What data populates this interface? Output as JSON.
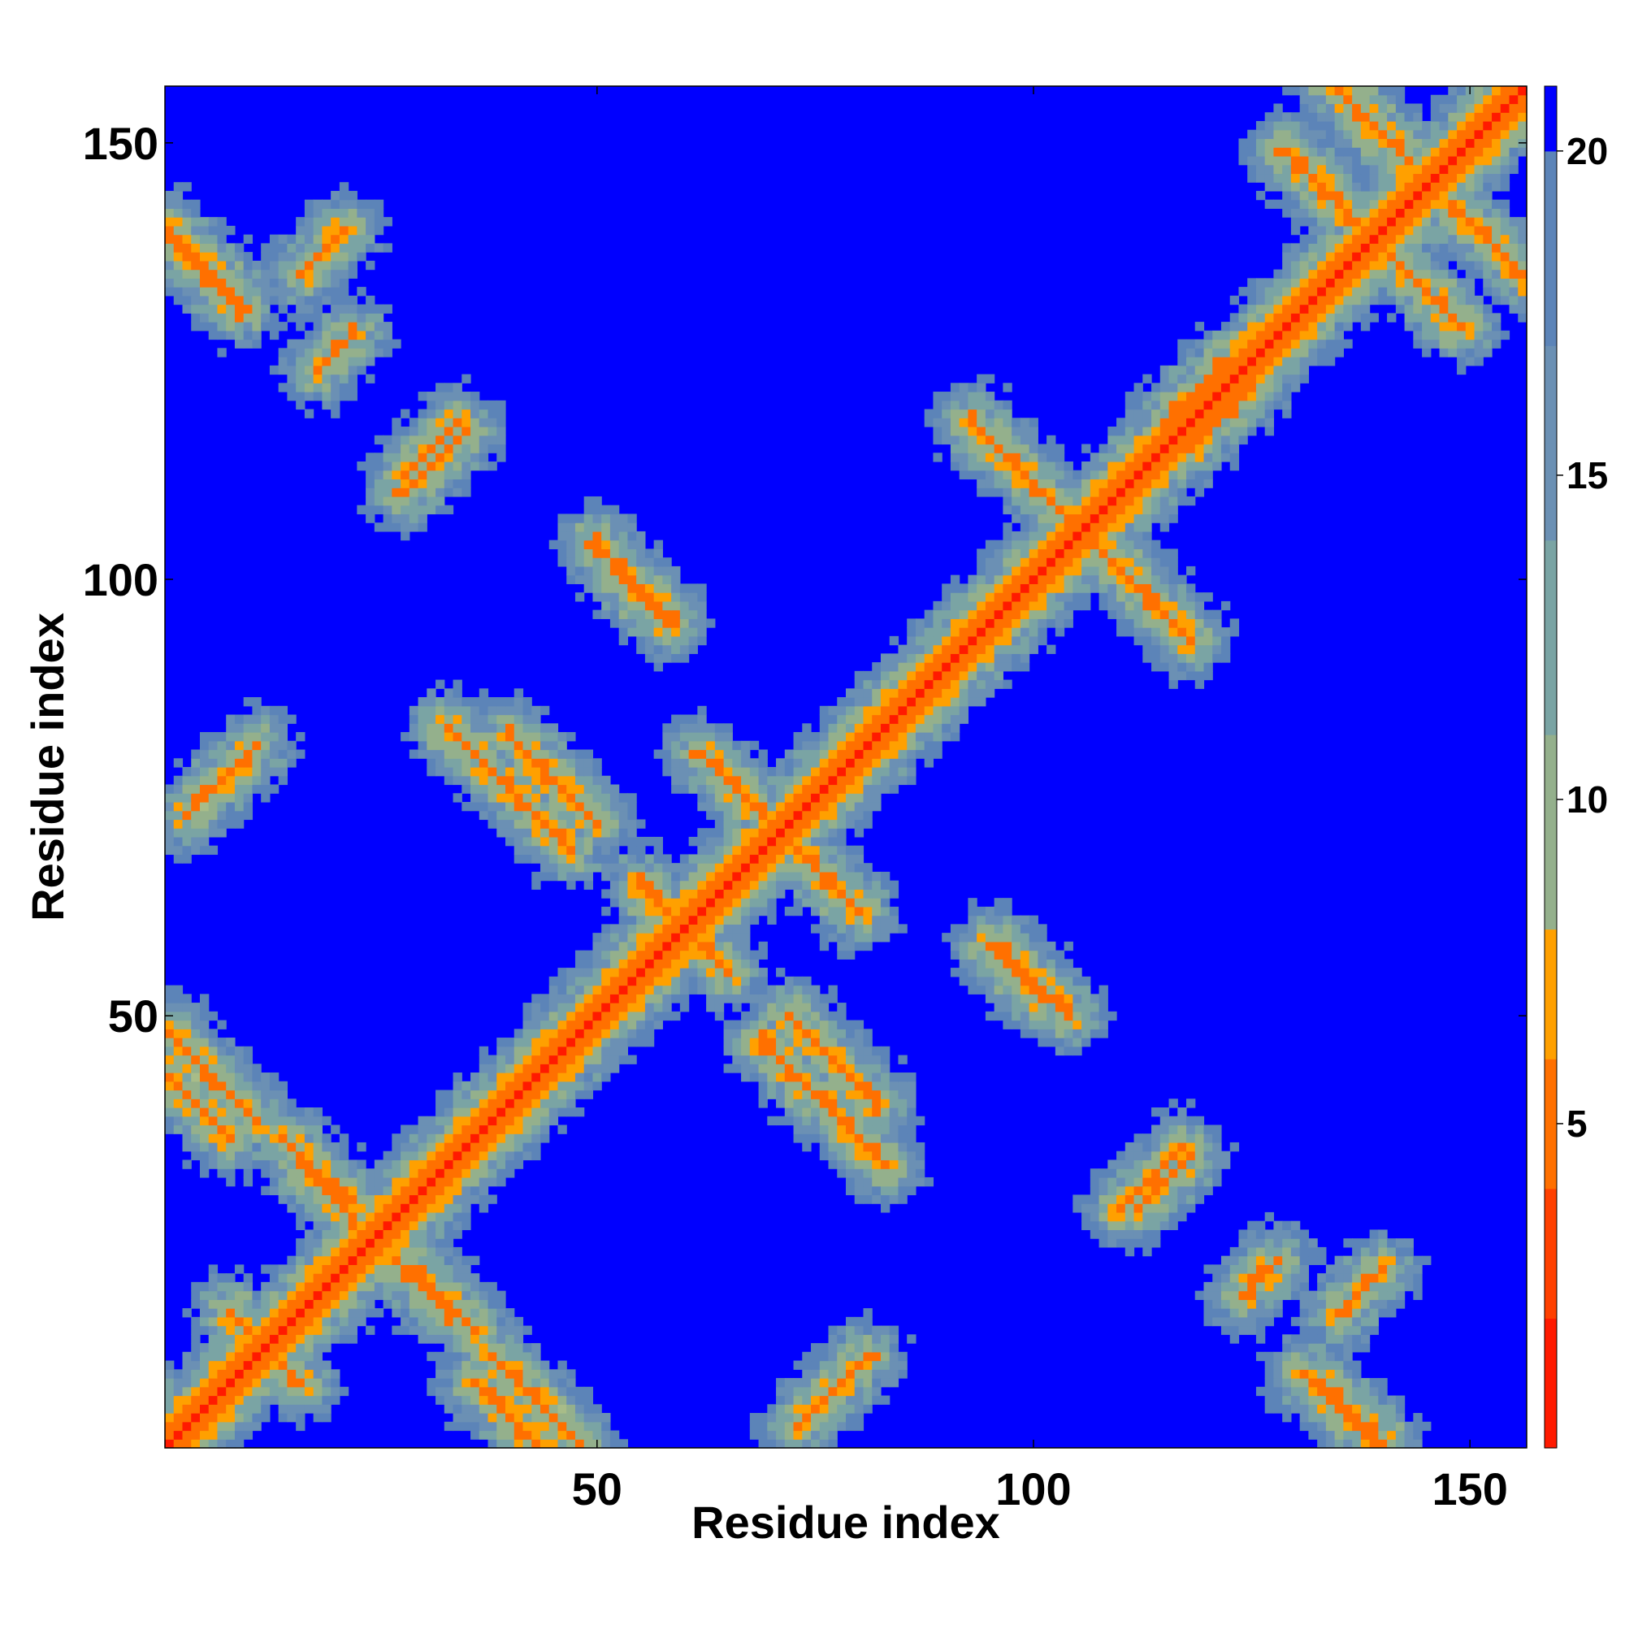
{
  "chart_data": {
    "type": "heatmap",
    "description_kind": "distance contact map",
    "xlabel": "Residue index",
    "ylabel": "Residue index",
    "xlim": [
      1,
      156
    ],
    "ylim": [
      1,
      156
    ],
    "x_ticks": [
      50,
      100,
      150
    ],
    "y_ticks": [
      50,
      100,
      150
    ],
    "colorbar": {
      "range": [
        0,
        21
      ],
      "ticks": [
        5,
        10,
        15,
        20
      ],
      "stops": [
        {
          "value": 0,
          "color": "#ff0000"
        },
        {
          "value": 2,
          "color": "#ff1a00"
        },
        {
          "value": 4,
          "color": "#ff4000"
        },
        {
          "value": 6,
          "color": "#ff7000"
        },
        {
          "value": 8,
          "color": "#ffa000"
        },
        {
          "value": 8.01,
          "color": "#a8bc88"
        },
        {
          "value": 11,
          "color": "#94b08c"
        },
        {
          "value": 14,
          "color": "#7aa4a4"
        },
        {
          "value": 17,
          "color": "#6b90b4"
        },
        {
          "value": 20,
          "color": "#5c84b8"
        },
        {
          "value": 20.01,
          "color": "#0000ff"
        },
        {
          "value": 21,
          "color": "#0000ff"
        }
      ],
      "cutoff_color": "#0000ff"
    },
    "cutoff": 20,
    "segments": [
      {
        "type": "diagonal",
        "start": 1,
        "end": 156
      },
      {
        "type": "anti",
        "x0": 1,
        "y0": 140,
        "len": 8
      },
      {
        "type": "anti",
        "x0": 1,
        "y0": 48,
        "len": 11
      },
      {
        "type": "anti",
        "x0": 14,
        "y0": 36,
        "len": 8
      },
      {
        "type": "anti",
        "x0": 27,
        "y0": 22,
        "len": 7
      },
      {
        "type": "anti",
        "x0": 8,
        "y0": 16,
        "len": 7
      },
      {
        "type": "anti",
        "x0": 36,
        "y0": 8,
        "len": 12
      },
      {
        "type": "anti",
        "x0": 33,
        "y0": 83,
        "len": 15
      },
      {
        "type": "anti",
        "x0": 50,
        "y0": 104,
        "len": 9
      },
      {
        "type": "anti",
        "x0": 62,
        "y0": 80,
        "len": 10
      },
      {
        "type": "anti",
        "x0": 72,
        "y0": 50,
        "len": 11
      },
      {
        "type": "anti",
        "x0": 93,
        "y0": 118,
        "len": 25
      },
      {
        "type": "anti",
        "x0": 95,
        "y0": 58,
        "len": 7
      },
      {
        "type": "anti",
        "x0": 135,
        "y0": 143,
        "len": 15
      },
      {
        "type": "anti",
        "x0": 131,
        "y0": 9,
        "len": 10
      },
      {
        "type": "anti",
        "x0": 134,
        "y0": 157,
        "len": 10
      },
      {
        "type": "anti",
        "x0": 55,
        "y0": 65,
        "len": 7
      },
      {
        "type": "par",
        "x0": 16,
        "y0": 135,
        "len": 6
      },
      {
        "type": "par",
        "x0": 28,
        "y0": 112,
        "len": 7
      },
      {
        "type": "par",
        "x0": 110,
        "y0": 28,
        "len": 8
      },
      {
        "type": "par",
        "x0": 124,
        "y0": 18,
        "len": 5
      },
      {
        "type": "par",
        "x0": 3,
        "y0": 73,
        "len": 9
      },
      {
        "type": "par",
        "x0": 73,
        "y0": 3,
        "len": 9
      },
      {
        "type": "par",
        "x0": 82,
        "y0": 83,
        "len": 6
      },
      {
        "type": "par",
        "x0": 115,
        "y0": 118,
        "len": 8
      }
    ]
  }
}
